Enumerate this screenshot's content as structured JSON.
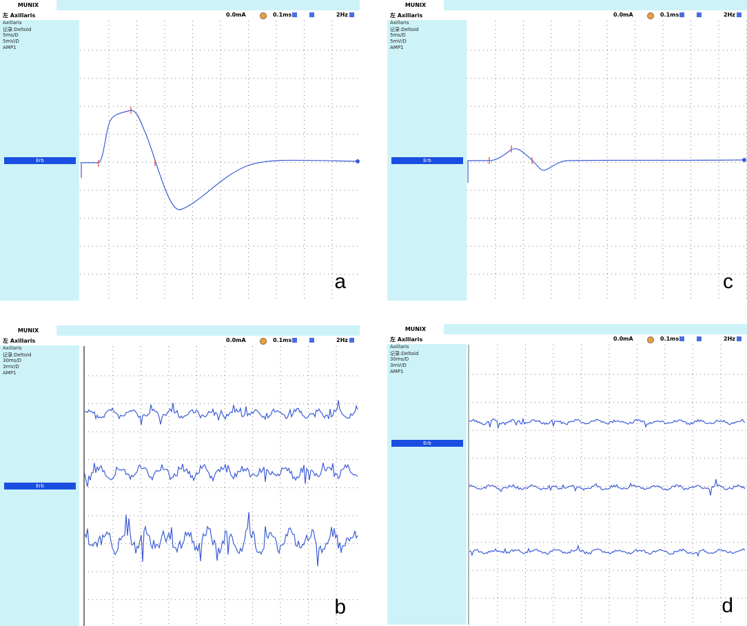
{
  "panels": [
    {
      "tab": "MUNIX",
      "nerve": "左 Axillaris",
      "current": "0.0mA",
      "duration": "0.1ms",
      "rate": "2Hz",
      "info": [
        "Axillaris",
        "记录:Deltoid",
        "5ms/D",
        "5mV/D",
        "AMP1"
      ],
      "marker": "Erb",
      "label": "a"
    },
    {
      "tab": "MUNIX",
      "nerve": "左 Axillaris",
      "current": "0.0mA",
      "duration": "0.1ms",
      "rate": "2Hz",
      "info": [
        "Axillaris",
        "记录:Deltoid",
        "5ms/D",
        "5mV/D",
        "AMP1"
      ],
      "marker": "Erb",
      "label": "c"
    },
    {
      "tab": "MUNIX",
      "nerve": "左 Axillaris",
      "current": "0.0mA",
      "duration": "0.1ms",
      "rate": "2Hz",
      "info": [
        "Axillaris",
        "记录:Deltoid",
        "30ms/D",
        "3mV/D",
        "AMP1"
      ],
      "marker": "Erb",
      "label": "b"
    },
    {
      "tab": "MUNIX",
      "nerve": "左 Axillaris",
      "current": "0.0mA",
      "duration": "0.1ms",
      "rate": "2Hz",
      "info": [
        "Axillaris",
        "记录:Deltoid",
        "30ms/D",
        "3mV/D",
        "AMP1"
      ],
      "marker": "Erb",
      "label": "d"
    }
  ]
}
